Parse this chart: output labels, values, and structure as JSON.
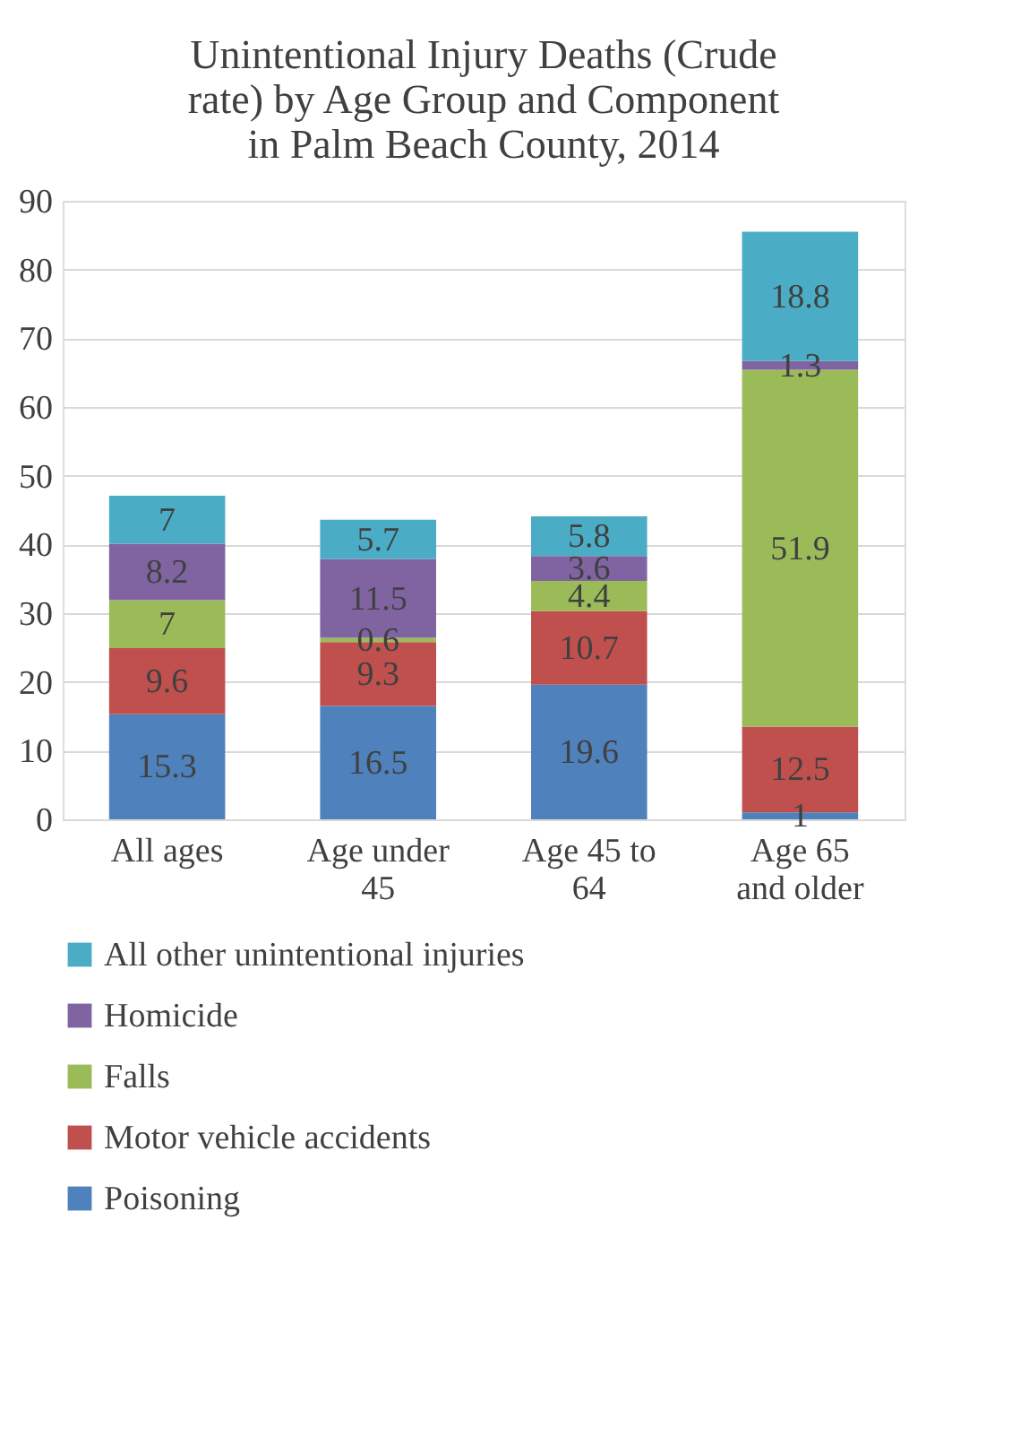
{
  "chart_data": {
    "type": "bar",
    "stacked": true,
    "title": "Unintentional Injury Deaths (Crude rate) by Age Group and Component in Palm Beach County, 2014",
    "categories": [
      "All ages",
      "Age under 45",
      "Age 45 to 64",
      "Age 65 and older"
    ],
    "series": [
      {
        "name": "Poisoning",
        "color": "#4f81bd",
        "values": [
          15.3,
          16.5,
          19.6,
          1
        ]
      },
      {
        "name": "Motor vehicle accidents",
        "color": "#c0504d",
        "values": [
          9.6,
          9.3,
          10.7,
          12.5
        ]
      },
      {
        "name": "Falls",
        "color": "#9bbb59",
        "values": [
          7,
          0.6,
          4.4,
          51.9
        ]
      },
      {
        "name": "Homicide",
        "color": "#8064a2",
        "values": [
          8.2,
          11.5,
          3.6,
          1.3
        ]
      },
      {
        "name": "All other unintentional injuries",
        "color": "#4bacc6",
        "values": [
          7,
          5.7,
          5.8,
          18.8
        ]
      }
    ],
    "ylim": [
      0,
      90
    ],
    "yticks": [
      0,
      10,
      20,
      30,
      40,
      50,
      60,
      70,
      80,
      90
    ],
    "grid": "y",
    "legend": "bottom",
    "data_labels": true
  }
}
